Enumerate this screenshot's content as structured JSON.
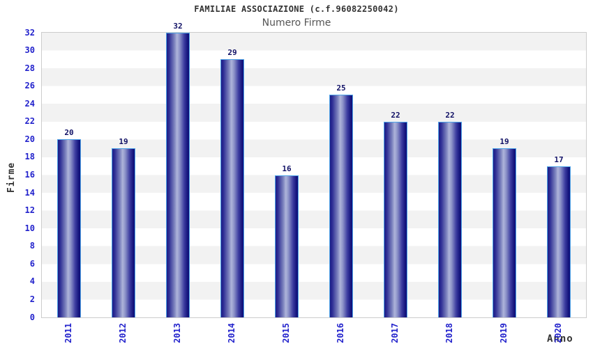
{
  "page": {
    "background": "#ffffff"
  },
  "chart_data": {
    "type": "bar",
    "title": "FAMILIAE ASSOCIAZIONE (c.f.96082250042)",
    "subtitle": "Numero Firme",
    "xlabel": "Anno",
    "ylabel": "Firme",
    "categories": [
      "2011",
      "2012",
      "2013",
      "2014",
      "2015",
      "2016",
      "2017",
      "2018",
      "2019",
      "2020"
    ],
    "values": [
      20,
      19,
      32,
      29,
      16,
      25,
      22,
      22,
      19,
      17
    ],
    "ylim": [
      0,
      32
    ],
    "ytick_step": 2,
    "yticks": [
      0,
      2,
      4,
      6,
      8,
      10,
      12,
      14,
      16,
      18,
      20,
      22,
      24,
      26,
      28,
      30,
      32
    ],
    "value_labels_shown": true,
    "legend": "none",
    "grid": "alternating-horizontal-bands",
    "x_tick_rotation_degrees": 90,
    "colors": {
      "bar_dark": "#16167e",
      "bar_highlight": "#aeb4da",
      "bar_border": "#4da3e8",
      "tick_text": "#2222cc",
      "value_label_text": "#111166",
      "title_text": "#333333",
      "subtitle_text": "#555555",
      "axis_label_text": "#333333",
      "band_gray": "#f2f2f2",
      "band_white": "#ffffff",
      "plot_border": "#cccccc",
      "page_bg": "#ffffff"
    }
  }
}
